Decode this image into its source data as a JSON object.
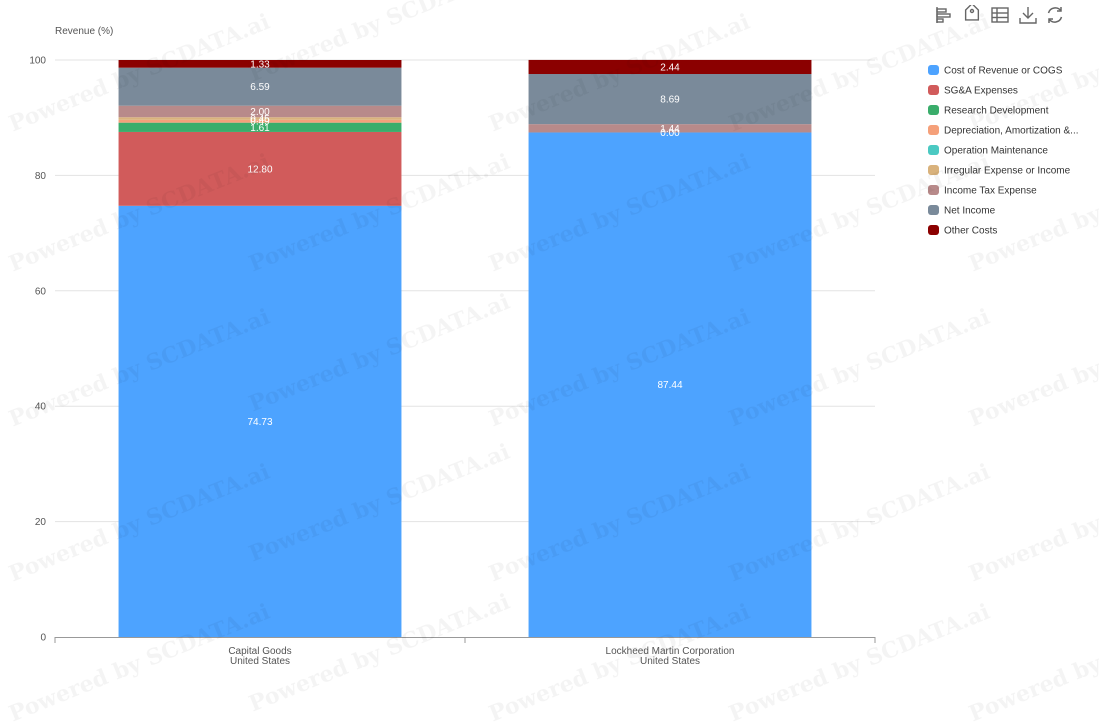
{
  "toolbar": {
    "icons": [
      "bar-chart-icon",
      "tag-icon",
      "table-icon",
      "download-icon",
      "refresh-icon"
    ]
  },
  "watermark": "Powered by SCDATA.ai",
  "chart_data": {
    "type": "bar",
    "stacked": true,
    "ylabel": "Revenue (%)",
    "ylim": [
      0,
      100
    ],
    "yticks": [
      0,
      20,
      40,
      60,
      80,
      100
    ],
    "grid": true,
    "legend_position": "right",
    "categories": [
      [
        "Capital Goods",
        "United States"
      ],
      [
        "Lockheed Martin Corporation",
        "United States"
      ]
    ],
    "series": [
      {
        "name": "Cost of Revenue or COGS",
        "color": "#4da3ff",
        "values": [
          74.73,
          87.44
        ]
      },
      {
        "name": "SG&A Expenses",
        "color": "#d15b5b",
        "values": [
          12.8,
          0.0
        ]
      },
      {
        "name": "Research Development",
        "color": "#3aad6b",
        "values": [
          1.61,
          0.0
        ]
      },
      {
        "name": "Depreciation, Amortization &...",
        "color": "#f5a07a",
        "values": [
          0.49,
          0.0
        ]
      },
      {
        "name": "Operation Maintenance",
        "color": "#4bc9c2",
        "values": [
          0.0,
          0.0
        ]
      },
      {
        "name": "Irregular Expense or Income",
        "color": "#d9b27c",
        "values": [
          0.45,
          0.0
        ]
      },
      {
        "name": "Income Tax Expense",
        "color": "#b88a8a",
        "values": [
          2.0,
          1.44
        ]
      },
      {
        "name": "Net Income",
        "color": "#7a8a9a",
        "values": [
          6.59,
          8.69
        ]
      },
      {
        "name": "Other Costs",
        "color": "#8b0000",
        "values": [
          1.33,
          2.44
        ]
      }
    ]
  }
}
